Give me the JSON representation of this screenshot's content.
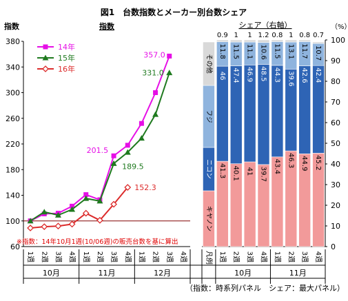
{
  "figure_title": "図1　台数指数とメーカー別台数シェア",
  "footnote": "※指数：14年10月1週(10/06週)の販売台数を基に算出",
  "bottom_note": "（指数：時系列パネル　シェア：最大パネル）",
  "legend_label": "凡例",
  "left_unit_label": "指数",
  "right_unit_label": "（%）",
  "colors": {
    "line14": "#e60fe6",
    "line15": "#1f7a1f",
    "line16": "#dc2b2b",
    "share_sonota": "#d9d9d9",
    "share_fuji": "#8fb4de",
    "share_nikon": "#2e64b5",
    "share_canon": "#f29a9a",
    "baseline": "#800000"
  },
  "chart_data": [
    {
      "type": "line",
      "title": "指数",
      "xlabel": "",
      "ylabel": "",
      "categories": [
        "1週",
        "2週",
        "3週",
        "4週",
        "1週",
        "2週",
        "3週",
        "4週",
        "1週",
        "2週",
        "3週",
        "4週"
      ],
      "groups": [
        {
          "label": "10月",
          "span": 4
        },
        {
          "label": "11月",
          "span": 4
        },
        {
          "label": "12月",
          "span": 4
        }
      ],
      "ylim": [
        60,
        380
      ],
      "yticks": [
        60,
        100,
        140,
        180,
        220,
        260,
        300,
        340,
        380
      ],
      "reference_line": 100,
      "grid": false,
      "legend_position": "top-left",
      "series": [
        {
          "name": "14年",
          "marker": "square",
          "values": [
            100,
            111,
            112,
            123,
            141,
            133,
            201.5,
            218,
            252,
            300,
            357.0,
            null
          ],
          "value_labels": [
            {
              "index": 6,
              "text": "201.5"
            },
            {
              "index": 10,
              "text": "357.0"
            }
          ]
        },
        {
          "name": "15年",
          "marker": "triangle",
          "values": [
            100,
            114,
            109,
            118,
            135,
            131,
            189.5,
            207,
            229,
            266,
            331.0,
            null
          ],
          "value_labels": [
            {
              "index": 6,
              "text": "189.5"
            },
            {
              "index": 10,
              "text": "331.0"
            }
          ]
        },
        {
          "name": "16年",
          "marker": "diamond",
          "values": [
            89,
            91,
            92,
            95,
            112,
            101,
            126,
            152.3,
            null,
            null,
            null,
            null
          ],
          "value_labels": [
            {
              "index": 7,
              "text": "152.3"
            }
          ]
        }
      ]
    },
    {
      "type": "bar",
      "stacked": true,
      "title": "シェア（右軸）",
      "xlabel": "",
      "ylabel": "",
      "categories": [
        "1週",
        "2週",
        "3週",
        "4週",
        "1週",
        "2週",
        "3週",
        "4週"
      ],
      "groups": [
        {
          "label": "10月",
          "span": 4
        },
        {
          "label": "11月",
          "span": 4
        }
      ],
      "ylim": [
        0,
        100
      ],
      "yticks": [
        0,
        10,
        20,
        30,
        40,
        50,
        60,
        70,
        80,
        90,
        100
      ],
      "series": [
        {
          "name": "キヤノン",
          "values": [
            41.3,
            40.1,
            41.0,
            39.7,
            43.4,
            46.3,
            44.9,
            45.2
          ]
        },
        {
          "name": "ニコン",
          "values": [
            46.0,
            47.4,
            46.9,
            48.5,
            44.3,
            39.6,
            42.6,
            42.4
          ]
        },
        {
          "name": "フジ",
          "values": [
            11.8,
            11.5,
            11.1,
            10.6,
            11.5,
            13.1,
            11.7,
            10.7
          ]
        },
        {
          "name": "その他",
          "values": [
            0.9,
            1.0,
            1.0,
            1.2,
            0.8,
            1.0,
            0.8,
            0.7
          ]
        }
      ]
    }
  ]
}
